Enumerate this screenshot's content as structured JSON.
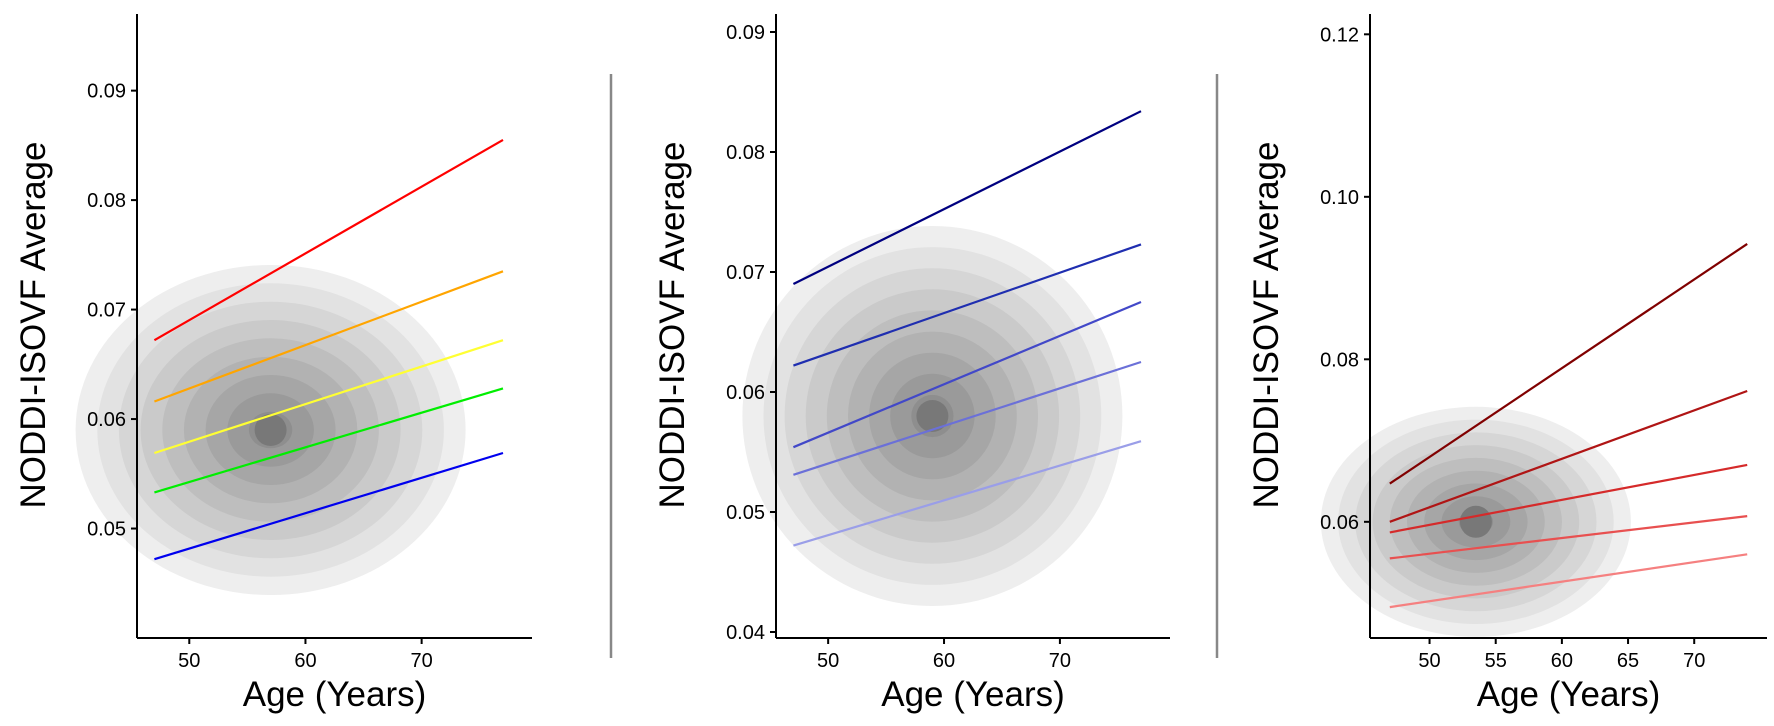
{
  "chart_data": [
    {
      "type": "line",
      "panel": "left",
      "title": "",
      "xlabel": "Age (Years)",
      "ylabel": "NODDI-ISOVF Average",
      "xlim": [
        45.5,
        79.5
      ],
      "ylim": [
        0.04,
        0.097
      ],
      "xticks": [
        50,
        60,
        70
      ],
      "yticks": [
        0.05,
        0.06,
        0.07,
        0.08,
        0.09
      ],
      "xtick_labels": [
        "50",
        "60",
        "70"
      ],
      "ytick_labels": [
        "0.05",
        "0.06",
        "0.07",
        "0.08",
        "0.09"
      ],
      "background": "density contours (grey)",
      "density_peak": [
        57,
        0.059
      ],
      "series": [
        {
          "name": "line-1",
          "color": "#ff0000",
          "x": [
            47,
            77
          ],
          "y": [
            0.0672,
            0.0855
          ]
        },
        {
          "name": "line-2",
          "color": "#ffa500",
          "x": [
            47,
            77
          ],
          "y": [
            0.0616,
            0.0735
          ]
        },
        {
          "name": "line-3",
          "color": "#ffff33",
          "x": [
            47,
            77
          ],
          "y": [
            0.0569,
            0.0672
          ]
        },
        {
          "name": "line-4",
          "color": "#00ee00",
          "x": [
            47,
            77
          ],
          "y": [
            0.0533,
            0.0628
          ]
        },
        {
          "name": "line-5",
          "color": "#0000ee",
          "x": [
            47,
            77
          ],
          "y": [
            0.0472,
            0.0569
          ]
        }
      ]
    },
    {
      "type": "line",
      "panel": "middle",
      "title": "",
      "xlabel": "Age (Years)",
      "ylabel": "NODDI-ISOVF Average",
      "xlim": [
        45.5,
        79.5
      ],
      "ylim": [
        0.0395,
        0.0915
      ],
      "xticks": [
        50,
        60,
        70
      ],
      "yticks": [
        0.04,
        0.05,
        0.06,
        0.07,
        0.08,
        0.09
      ],
      "xtick_labels": [
        "50",
        "60",
        "70"
      ],
      "ytick_labels": [
        "0.04",
        "0.05",
        "0.06",
        "0.07",
        "0.08",
        "0.09"
      ],
      "background": "density contours (grey)",
      "density_peak": [
        59,
        0.058
      ],
      "series": [
        {
          "name": "line-1",
          "color": "#000080",
          "x": [
            47,
            77
          ],
          "y": [
            0.069,
            0.0834
          ]
        },
        {
          "name": "line-2",
          "color": "#1f2eb0",
          "x": [
            47,
            77
          ],
          "y": [
            0.0622,
            0.0723
          ]
        },
        {
          "name": "line-3",
          "color": "#4248c8",
          "x": [
            47,
            77
          ],
          "y": [
            0.0554,
            0.0675
          ]
        },
        {
          "name": "line-4",
          "color": "#6b70d8",
          "x": [
            47,
            77
          ],
          "y": [
            0.0531,
            0.0625
          ]
        },
        {
          "name": "line-5",
          "color": "#9a9ee8",
          "x": [
            47,
            77
          ],
          "y": [
            0.0472,
            0.0559
          ]
        }
      ]
    },
    {
      "type": "line",
      "panel": "right",
      "title": "",
      "xlabel": "Age (Years)",
      "ylabel": "NODDI-ISOVF Average",
      "xlim": [
        45.5,
        75.5
      ],
      "ylim": [
        0.0457,
        0.1225
      ],
      "xticks": [
        50,
        55,
        60,
        65,
        70
      ],
      "yticks": [
        0.06,
        0.08,
        0.1,
        0.12
      ],
      "xtick_labels": [
        "50",
        "55",
        "60",
        "65",
        "70"
      ],
      "ytick_labels": [
        "0.06",
        "0.08",
        "0.10",
        "0.12"
      ],
      "background": "density contours (grey)",
      "density_peak": [
        53.5,
        0.06
      ],
      "series": [
        {
          "name": "line-1",
          "color": "#800000",
          "x": [
            47,
            74
          ],
          "y": [
            0.0647,
            0.0942
          ]
        },
        {
          "name": "line-2",
          "color": "#b01515",
          "x": [
            47,
            74
          ],
          "y": [
            0.06,
            0.0761
          ]
        },
        {
          "name": "line-3",
          "color": "#d52a2a",
          "x": [
            47,
            74
          ],
          "y": [
            0.0587,
            0.067
          ]
        },
        {
          "name": "line-4",
          "color": "#e85050",
          "x": [
            47,
            74
          ],
          "y": [
            0.0555,
            0.0607
          ]
        },
        {
          "name": "line-5",
          "color": "#f58080",
          "x": [
            47,
            74
          ],
          "y": [
            0.0495,
            0.056
          ]
        }
      ]
    }
  ]
}
